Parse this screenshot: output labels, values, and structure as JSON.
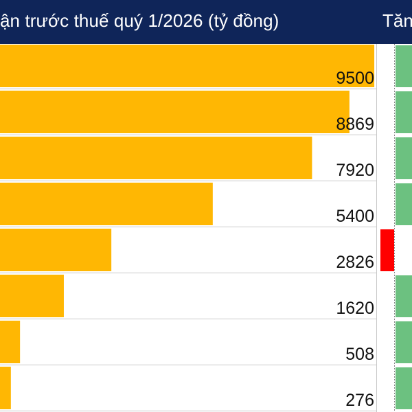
{
  "header": {
    "title_left": "ận trước thuế quý 1/2026 (tỷ đồng)",
    "title_right": "Tăng"
  },
  "colors": {
    "header_bg": "#0f2559",
    "bar": "#ffb703",
    "growth_positive": "#6cc180",
    "growth_negative": "#ff0000",
    "grid": "#c8c8c8",
    "text": "#111111"
  },
  "chart_data": {
    "type": "bar",
    "orientation": "horizontal",
    "values": [
      9500,
      8869,
      7920,
      5400,
      2826,
      1620,
      508,
      276
    ],
    "xlim": [
      0,
      12200
    ],
    "growth_sign": [
      "positive",
      "positive",
      "positive",
      "positive",
      "negative",
      "positive",
      "positive",
      "positive"
    ],
    "grid": true
  }
}
